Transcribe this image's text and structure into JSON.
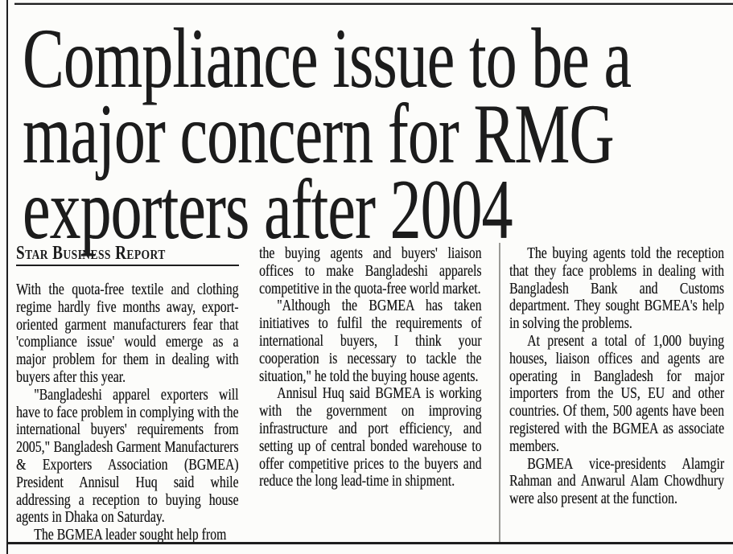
{
  "article": {
    "headline_lines": [
      "Compliance issue to be a",
      "major concern for RMG",
      "exporters after 2004"
    ],
    "byline": "Star Business Report",
    "columns": [
      {
        "paragraphs": [
          {
            "indent": false,
            "text": "With the quota-free textile and clothing regime hardly five months away, export-oriented garment manufacturers fear that 'compliance issue' would emerge as a major problem for them in dealing with buyers after this year."
          },
          {
            "indent": true,
            "text": "\"Bangladeshi apparel exporters will have to face problem in complying with the international buyers' requirements from 2005,\" Bangladesh Garment Manufacturers & Exporters Association (BGMEA) President Annisul Huq said while addressing a reception to buying house agents in Dhaka on Saturday."
          },
          {
            "indent": true,
            "text": "The BGMEA leader sought help from"
          }
        ]
      },
      {
        "paragraphs": [
          {
            "indent": false,
            "text": "the buying agents and buyers' liaison offices to make Bangladeshi apparels competitive in the quota-free world market."
          },
          {
            "indent": true,
            "text": "\"Although the BGMEA has taken initiatives to fulfil the requirements of international buyers, I think your cooperation is necessary to tackle the situation,\" he told the buying house agents."
          },
          {
            "indent": true,
            "text": "Annisul Huq said BGMEA is working with the government on improving infrastructure and port efficiency, and setting up of central bonded warehouse to offer competitive prices to the buyers and reduce the long lead-time in shipment."
          }
        ]
      },
      {
        "paragraphs": [
          {
            "indent": true,
            "text": "The buying agents told the reception that they face problems in dealing with Bangladesh Bank and Customs department. They sought BGMEA's help in solving the problems."
          },
          {
            "indent": true,
            "text": "At present a total of 1,000 buying houses, liaison offices and agents are operating in Bangladesh for major importers from the US, EU and other countries. Of them, 500 agents have been registered with the BGMEA as associate members."
          },
          {
            "indent": true,
            "text": "BGMEA vice-presidents Alamgir Rahman and Anwarul Alam Chowdhury were also present at the function."
          }
        ]
      }
    ]
  },
  "colors": {
    "ink": "#1c1c1c",
    "paper": "#fcfcfa",
    "rule": "#1e1e1e",
    "light_rule": "#b3b3b3",
    "column_divider": "#9a9a96"
  }
}
